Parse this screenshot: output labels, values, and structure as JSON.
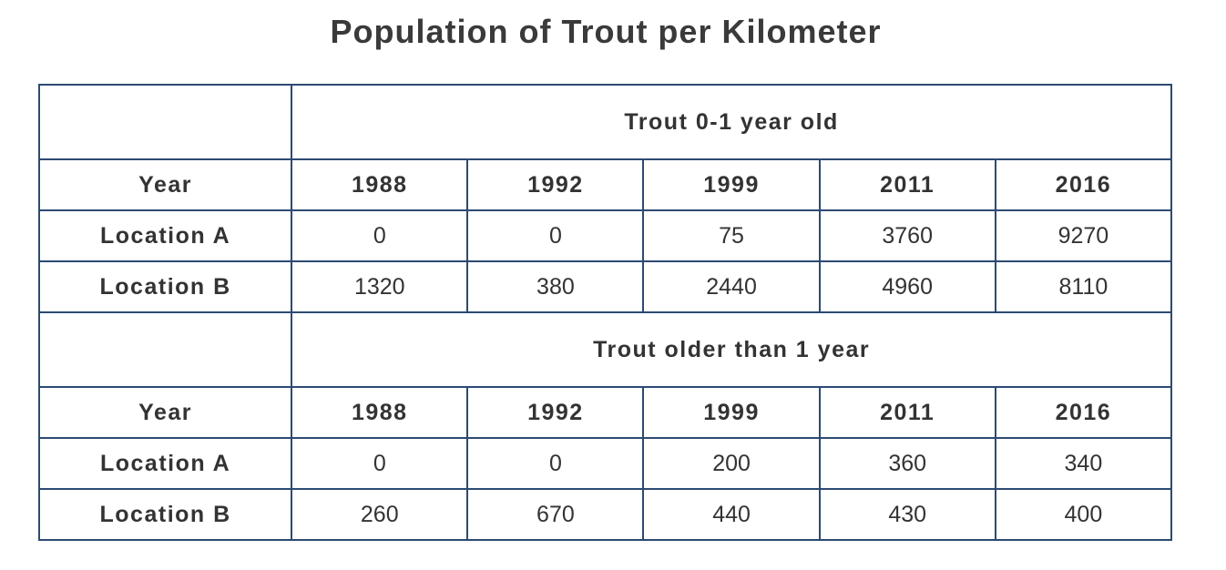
{
  "chart_data": {
    "type": "table",
    "title": "Population of Trout per Kilometer",
    "row_header": "Year",
    "columns": [
      "1988",
      "1992",
      "1999",
      "2011",
      "2016"
    ],
    "sections": [
      {
        "label": "Trout 0-1 year old",
        "rows": [
          {
            "name": "Location A",
            "values": [
              "0",
              "0",
              "75",
              "3760",
              "9270"
            ]
          },
          {
            "name": "Location B",
            "values": [
              "1320",
              "380",
              "2440",
              "4960",
              "8110"
            ]
          }
        ]
      },
      {
        "label": "Trout older than 1 year",
        "rows": [
          {
            "name": "Location A",
            "values": [
              "0",
              "0",
              "200",
              "360",
              "340"
            ]
          },
          {
            "name": "Location B",
            "values": [
              "260",
              "670",
              "440",
              "430",
              "400"
            ]
          }
        ]
      }
    ]
  }
}
